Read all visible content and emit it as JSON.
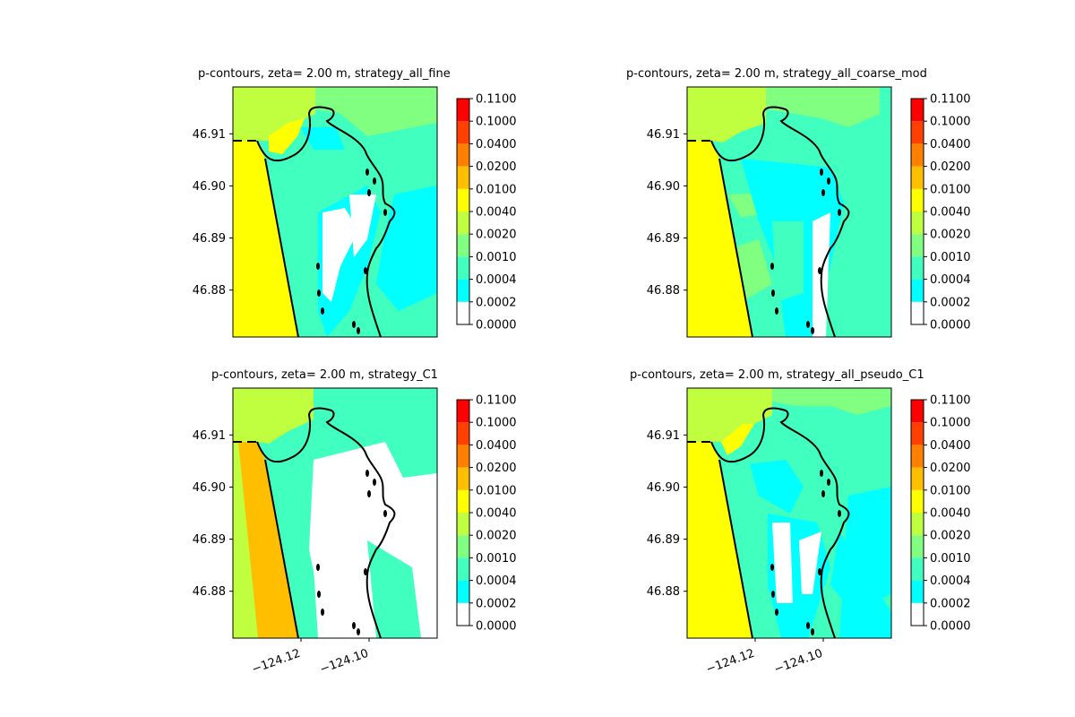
{
  "figure": {
    "colors": {
      "levels": [
        "#ffffff",
        "#00ffff",
        "#40ffbf",
        "#80ff80",
        "#bfff40",
        "#ffff00",
        "#ffbf00",
        "#ff8000",
        "#ff4000",
        "#ff0000"
      ],
      "coast": "#000000",
      "frame": "#000000"
    }
  },
  "chart_data": [
    {
      "type": "contour",
      "title": "p-contours, zeta= 2.00 m, strategy_all_fine",
      "xlabel": "",
      "ylabel": "",
      "xlim": [
        -124.14,
        -124.08
      ],
      "ylim": [
        46.871,
        46.919
      ],
      "yticks": [
        "46.91",
        "46.90",
        "46.89",
        "46.88"
      ],
      "xticks": [],
      "colorbar": {
        "levels": [
          0.0,
          0.0002,
          0.0004,
          0.001,
          0.002,
          0.004,
          0.01,
          0.02,
          0.04,
          0.1,
          0.11
        ],
        "labels": [
          "0.1100",
          "0.1000",
          "0.0400",
          "0.0200",
          "0.0100",
          "0.0040",
          "0.0020",
          "0.0010",
          "0.0004",
          "0.0002",
          "0.0000"
        ]
      }
    },
    {
      "type": "contour",
      "title": "p-contours, zeta= 2.00 m, strategy_all_coarse_mod",
      "xlabel": "",
      "ylabel": "",
      "xlim": [
        -124.14,
        -124.08
      ],
      "ylim": [
        46.871,
        46.919
      ],
      "yticks": [
        "46.91",
        "46.90",
        "46.89",
        "46.88"
      ],
      "xticks": [],
      "colorbar": {
        "levels": [
          0.0,
          0.0002,
          0.0004,
          0.001,
          0.002,
          0.004,
          0.01,
          0.02,
          0.04,
          0.1,
          0.11
        ],
        "labels": [
          "0.1100",
          "0.1000",
          "0.0400",
          "0.0200",
          "0.0100",
          "0.0040",
          "0.0020",
          "0.0010",
          "0.0004",
          "0.0002",
          "0.0000"
        ]
      }
    },
    {
      "type": "contour",
      "title": "p-contours, zeta= 2.00 m, strategy_C1",
      "xlabel": "",
      "ylabel": "",
      "xlim": [
        -124.14,
        -124.08
      ],
      "ylim": [
        46.871,
        46.919
      ],
      "yticks": [
        "46.91",
        "46.90",
        "46.89",
        "46.88"
      ],
      "xticks": [
        "−124.12",
        "−124.10"
      ],
      "colorbar": {
        "levels": [
          0.0,
          0.0002,
          0.0004,
          0.001,
          0.002,
          0.004,
          0.01,
          0.02,
          0.04,
          0.1,
          0.11
        ],
        "labels": [
          "0.1100",
          "0.1000",
          "0.0400",
          "0.0200",
          "0.0100",
          "0.0040",
          "0.0020",
          "0.0010",
          "0.0004",
          "0.0002",
          "0.0000"
        ]
      }
    },
    {
      "type": "contour",
      "title": "p-contours, zeta= 2.00 m, strategy_all_pseudo_C1",
      "xlabel": "",
      "ylabel": "",
      "xlim": [
        -124.14,
        -124.08
      ],
      "ylim": [
        46.871,
        46.919
      ],
      "yticks": [
        "46.91",
        "46.90",
        "46.89",
        "46.88"
      ],
      "xticks": [
        "−124.12",
        "−124.10"
      ],
      "colorbar": {
        "levels": [
          0.0,
          0.0002,
          0.0004,
          0.001,
          0.002,
          0.004,
          0.01,
          0.02,
          0.04,
          0.1,
          0.11
        ],
        "labels": [
          "0.1100",
          "0.1000",
          "0.0400",
          "0.0200",
          "0.0100",
          "0.0040",
          "0.0020",
          "0.0010",
          "0.0004",
          "0.0002",
          "0.0000"
        ]
      }
    }
  ]
}
